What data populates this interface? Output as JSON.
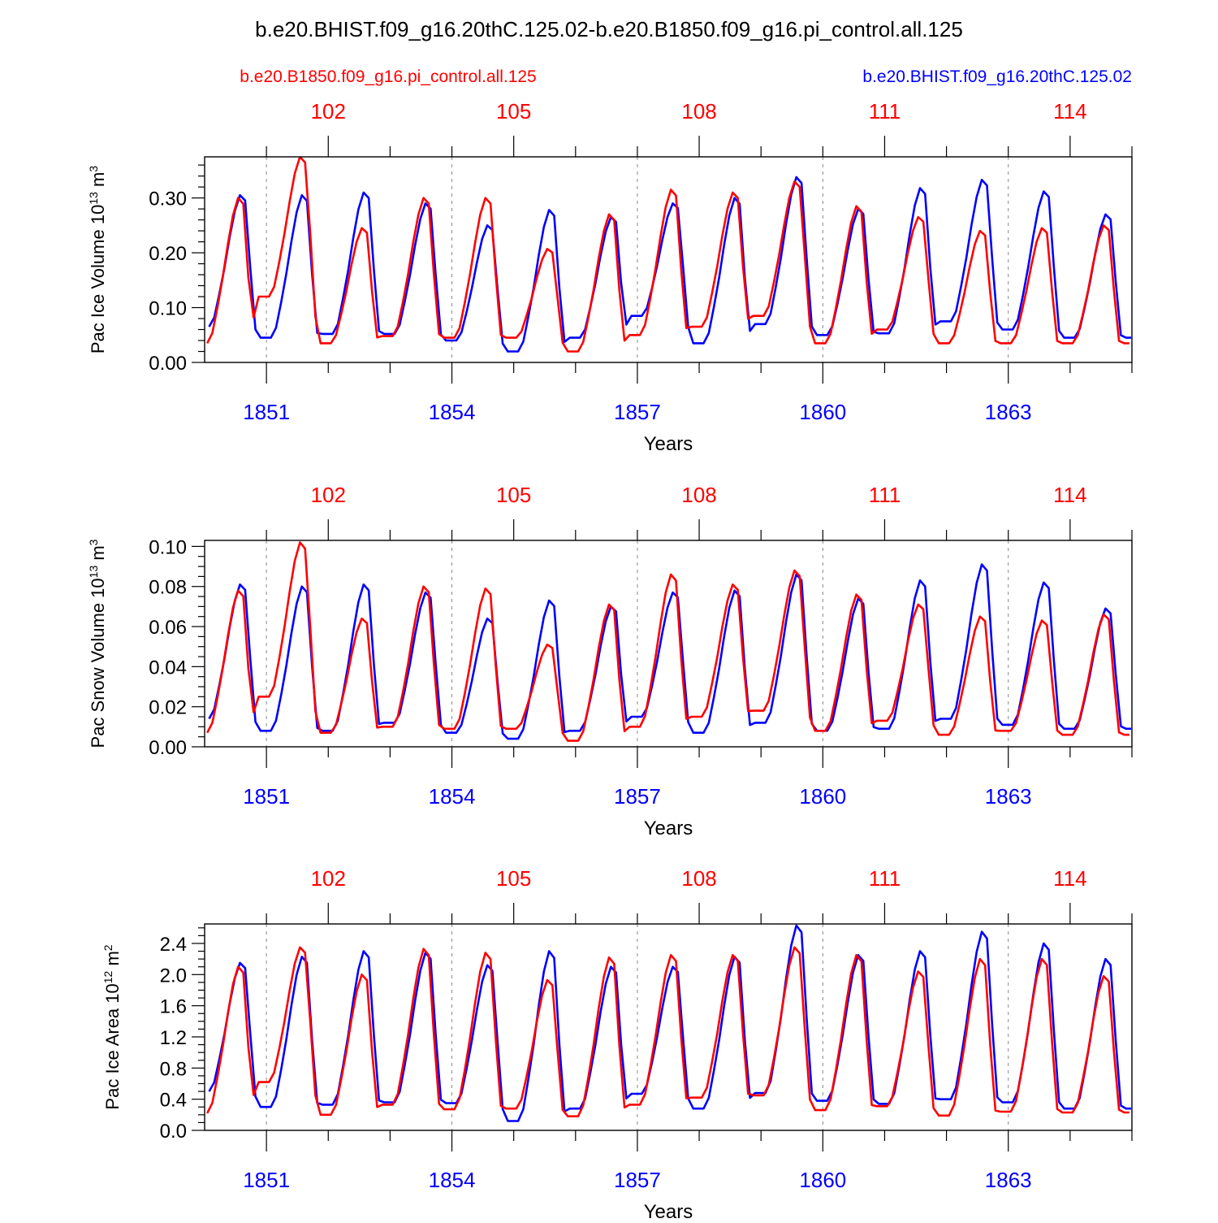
{
  "title": "b.e20.BHIST.f09_g16.20thC.125.02-b.e20.B1850.f09_g16.pi_control.all.125",
  "legend": {
    "left_case": "b.e20.B1850.f09_g16.pi_control.all.125",
    "right_case": "b.e20.BHIST.f09_g16.20thC.125.02"
  },
  "colors": {
    "control": "#ff0000",
    "historical": "#0000ff",
    "axis": "#000000"
  },
  "chart_data": [
    {
      "type": "line",
      "title": "",
      "xlabel": "Years",
      "ylabel": "Pac Ice Volume 10",
      "ylabel_exp": "13",
      "ylabel_unit": " m",
      "ylabel_unit_exp": "3",
      "xlim": [
        1850.0,
        1865.0
      ],
      "ylim": [
        0.0,
        0.375
      ],
      "x_ticks": [
        1851,
        1854,
        1857,
        1860,
        1863
      ],
      "x_tick_labels": [
        "1851",
        "1854",
        "1857",
        "1860",
        "1863"
      ],
      "top_ticks": [
        1852,
        1855,
        1858,
        1861,
        1864
      ],
      "top_tick_labels": [
        "102",
        "105",
        "108",
        "111",
        "114"
      ],
      "y_ticks": [
        0.0,
        0.1,
        0.2,
        0.3
      ],
      "y_tick_labels": [
        "0.00",
        "0.10",
        "0.20",
        "0.30"
      ],
      "y_minor_step": 0.02,
      "series": [
        {
          "name": "b.e20.B1850.f09_g16.pi_control.all.125",
          "color": "#ff0000",
          "min": [
            0.035,
            0.12,
            0.035,
            0.048,
            0.045,
            0.045,
            0.02,
            0.05,
            0.065,
            0.085,
            0.035,
            0.06,
            0.035,
            0.035,
            0.035
          ],
          "max": [
            0.3,
            0.375,
            0.245,
            0.3,
            0.3,
            0.207,
            0.27,
            0.315,
            0.31,
            0.33,
            0.285,
            0.265,
            0.24,
            0.245,
            0.25
          ]
        },
        {
          "name": "b.e20.BHIST.f09_g16.20thC.125.02",
          "color": "#0000ff",
          "min": [
            0.065,
            0.045,
            0.052,
            0.052,
            0.04,
            0.02,
            0.045,
            0.085,
            0.035,
            0.07,
            0.05,
            0.053,
            0.075,
            0.06,
            0.045
          ],
          "max": [
            0.305,
            0.305,
            0.31,
            0.29,
            0.25,
            0.278,
            0.265,
            0.29,
            0.3,
            0.338,
            0.28,
            0.318,
            0.333,
            0.312,
            0.27
          ]
        }
      ]
    },
    {
      "type": "line",
      "title": "",
      "xlabel": "Years",
      "ylabel": "Pac Snow Volume 10",
      "ylabel_exp": "13",
      "ylabel_unit": " m",
      "ylabel_unit_exp": "3",
      "xlim": [
        1850.0,
        1865.0
      ],
      "ylim": [
        0.0,
        0.103
      ],
      "x_ticks": [
        1851,
        1854,
        1857,
        1860,
        1863
      ],
      "x_tick_labels": [
        "1851",
        "1854",
        "1857",
        "1860",
        "1863"
      ],
      "top_ticks": [
        1852,
        1855,
        1858,
        1861,
        1864
      ],
      "top_tick_labels": [
        "102",
        "105",
        "108",
        "111",
        "114"
      ],
      "y_ticks": [
        0.0,
        0.02,
        0.04,
        0.06,
        0.08,
        0.1
      ],
      "y_tick_labels": [
        "0.00",
        "0.02",
        "0.04",
        "0.06",
        "0.08",
        "0.10"
      ],
      "y_minor_step": 0.005,
      "series": [
        {
          "name": "b.e20.B1850.f09_g16.pi_control.all.125",
          "color": "#ff0000",
          "min": [
            0.007,
            0.025,
            0.007,
            0.01,
            0.009,
            0.009,
            0.003,
            0.01,
            0.015,
            0.018,
            0.008,
            0.013,
            0.006,
            0.008,
            0.006
          ],
          "max": [
            0.078,
            0.102,
            0.064,
            0.08,
            0.079,
            0.051,
            0.071,
            0.086,
            0.081,
            0.088,
            0.076,
            0.071,
            0.065,
            0.063,
            0.066
          ]
        },
        {
          "name": "b.e20.BHIST.f09_g16.20thC.125.02",
          "color": "#0000ff",
          "min": [
            0.014,
            0.008,
            0.008,
            0.012,
            0.007,
            0.004,
            0.008,
            0.015,
            0.007,
            0.012,
            0.008,
            0.009,
            0.014,
            0.011,
            0.009
          ],
          "max": [
            0.081,
            0.08,
            0.081,
            0.077,
            0.064,
            0.073,
            0.07,
            0.077,
            0.078,
            0.086,
            0.074,
            0.083,
            0.091,
            0.082,
            0.069
          ]
        }
      ]
    },
    {
      "type": "line",
      "title": "",
      "xlabel": "Years",
      "ylabel": "Pac Ice Area 10",
      "ylabel_exp": "12",
      "ylabel_unit": " m",
      "ylabel_unit_exp": "2",
      "xlim": [
        1850.0,
        1865.0
      ],
      "ylim": [
        0.0,
        2.65
      ],
      "x_ticks": [
        1851,
        1854,
        1857,
        1860,
        1863
      ],
      "x_tick_labels": [
        "1851",
        "1854",
        "1857",
        "1860",
        "1863"
      ],
      "top_ticks": [
        1852,
        1855,
        1858,
        1861,
        1864
      ],
      "top_tick_labels": [
        "102",
        "105",
        "108",
        "111",
        "114"
      ],
      "y_ticks": [
        0.0,
        0.4,
        0.8,
        1.2,
        1.6,
        2.0,
        2.4
      ],
      "y_tick_labels": [
        "0.0",
        "0.4",
        "0.8",
        "1.2",
        "1.6",
        "2.0",
        "2.4"
      ],
      "y_minor_step": 0.1,
      "series": [
        {
          "name": "b.e20.B1850.f09_g16.pi_control.all.125",
          "color": "#ff0000",
          "min": [
            0.22,
            0.62,
            0.2,
            0.33,
            0.27,
            0.28,
            0.18,
            0.33,
            0.42,
            0.45,
            0.26,
            0.31,
            0.19,
            0.24,
            0.23
          ],
          "max": [
            2.1,
            2.35,
            2.0,
            2.33,
            2.28,
            1.93,
            2.22,
            2.25,
            2.25,
            2.35,
            2.25,
            2.04,
            2.2,
            2.2,
            1.98
          ]
        },
        {
          "name": "b.e20.BHIST.f09_g16.20thC.125.02",
          "color": "#0000ff",
          "min": [
            0.5,
            0.3,
            0.33,
            0.36,
            0.35,
            0.12,
            0.28,
            0.47,
            0.28,
            0.48,
            0.38,
            0.34,
            0.4,
            0.36,
            0.28
          ],
          "max": [
            2.15,
            2.23,
            2.3,
            2.28,
            2.12,
            2.3,
            2.1,
            2.1,
            2.23,
            2.63,
            2.25,
            2.3,
            2.55,
            2.4,
            2.2
          ]
        }
      ]
    }
  ]
}
